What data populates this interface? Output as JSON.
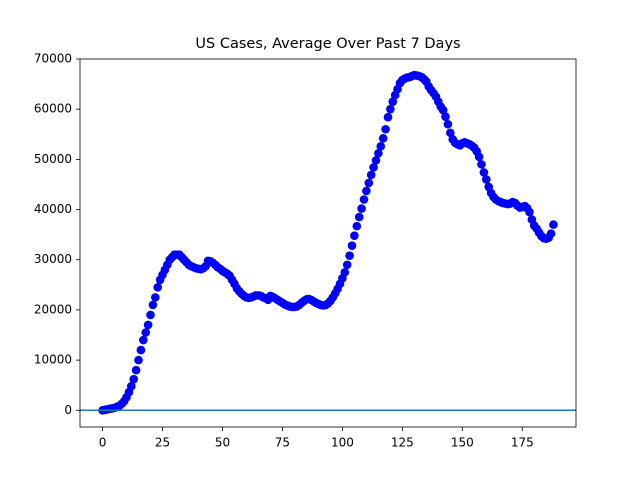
{
  "chart_data": {
    "type": "scatter",
    "title": "US Cases, Average Over Past 7 Days",
    "xlim": [
      -9.4,
      197.4
    ],
    "ylim": [
      -3330,
      70000
    ],
    "xticks": [
      0,
      25,
      50,
      75,
      100,
      125,
      150,
      175
    ],
    "yticks": [
      0,
      10000,
      20000,
      30000,
      40000,
      50000,
      60000,
      70000
    ],
    "hline": 0,
    "hline_color": "#1f77b4",
    "series": [
      {
        "color": "#0000ff",
        "x": [
          0,
          1,
          2,
          3,
          4,
          5,
          6,
          7,
          8,
          9,
          10,
          11,
          12,
          13,
          14,
          15,
          16,
          17,
          18,
          19,
          20,
          21,
          22,
          23,
          24,
          25,
          26,
          27,
          28,
          29,
          30,
          31,
          32,
          33,
          34,
          35,
          36,
          37,
          38,
          39,
          40,
          41,
          42,
          43,
          44,
          45,
          46,
          47,
          48,
          49,
          50,
          51,
          52,
          53,
          54,
          55,
          56,
          57,
          58,
          59,
          60,
          61,
          62,
          63,
          64,
          65,
          66,
          67,
          68,
          69,
          70,
          71,
          72,
          73,
          74,
          75,
          76,
          77,
          78,
          79,
          80,
          81,
          82,
          83,
          84,
          85,
          86,
          87,
          88,
          89,
          90,
          91,
          92,
          93,
          94,
          95,
          96,
          97,
          98,
          99,
          100,
          101,
          102,
          103,
          104,
          105,
          106,
          107,
          108,
          109,
          110,
          111,
          112,
          113,
          114,
          115,
          116,
          117,
          118,
          119,
          120,
          121,
          122,
          123,
          124,
          125,
          126,
          127,
          128,
          129,
          130,
          131,
          132,
          133,
          134,
          135,
          136,
          137,
          138,
          139,
          140,
          141,
          142,
          143,
          144,
          145,
          146,
          147,
          148,
          149,
          150,
          151,
          152,
          153,
          154,
          155,
          156,
          157,
          158,
          159,
          160,
          161,
          162,
          163,
          164,
          165,
          166,
          167,
          168,
          169,
          170,
          171,
          172,
          173,
          174,
          175,
          176,
          177,
          178,
          179,
          180,
          181,
          182,
          183,
          184,
          185,
          186,
          187,
          188
        ],
        "values": [
          0,
          100,
          200,
          300,
          400,
          500,
          700,
          900,
          1300,
          1800,
          2600,
          3600,
          4800,
          6200,
          8000,
          10000,
          12000,
          14000,
          15500,
          17000,
          19000,
          21000,
          22500,
          24500,
          26000,
          27000,
          28000,
          29000,
          30000,
          30500,
          31000,
          31000,
          31000,
          30500,
          30000,
          29500,
          29000,
          28700,
          28500,
          28300,
          28200,
          28100,
          28300,
          28700,
          29800,
          29700,
          29400,
          29000,
          28500,
          28200,
          27800,
          27500,
          27200,
          26800,
          26000,
          25200,
          24300,
          23700,
          23200,
          22800,
          22500,
          22400,
          22500,
          22700,
          22900,
          22900,
          22800,
          22500,
          22300,
          22000,
          22800,
          22600,
          22300,
          22000,
          21700,
          21400,
          21100,
          20900,
          20700,
          20600,
          20600,
          20700,
          21000,
          21400,
          21800,
          22100,
          22200,
          22000,
          21700,
          21400,
          21200,
          21000,
          20900,
          21000,
          21300,
          21800,
          22500,
          23300,
          24200,
          25200,
          26300,
          27500,
          29000,
          30800,
          32800,
          34800,
          36700,
          38500,
          40200,
          42000,
          43700,
          45300,
          46900,
          48400,
          49800,
          51200,
          52600,
          54200,
          56000,
          58400,
          60000,
          61500,
          62800,
          64000,
          65200,
          65800,
          66100,
          66300,
          66400,
          66600,
          66800,
          66700,
          66600,
          66400,
          66000,
          65500,
          64500,
          63800,
          63200,
          62500,
          61500,
          60500,
          59800,
          58500,
          57000,
          55300,
          54000,
          53300,
          53000,
          52800,
          53200,
          53400,
          53200,
          53000,
          52700,
          52300,
          51600,
          50500,
          49000,
          47400,
          46000,
          44500,
          43300,
          42500,
          42000,
          41700,
          41500,
          41300,
          41200,
          41100,
          41200,
          41500,
          41300,
          40800,
          40400,
          40500,
          40700,
          40300,
          39500,
          38000,
          36800,
          36200,
          35400,
          34700,
          34300,
          34200,
          34400,
          35200,
          37000
        ]
      }
    ]
  }
}
